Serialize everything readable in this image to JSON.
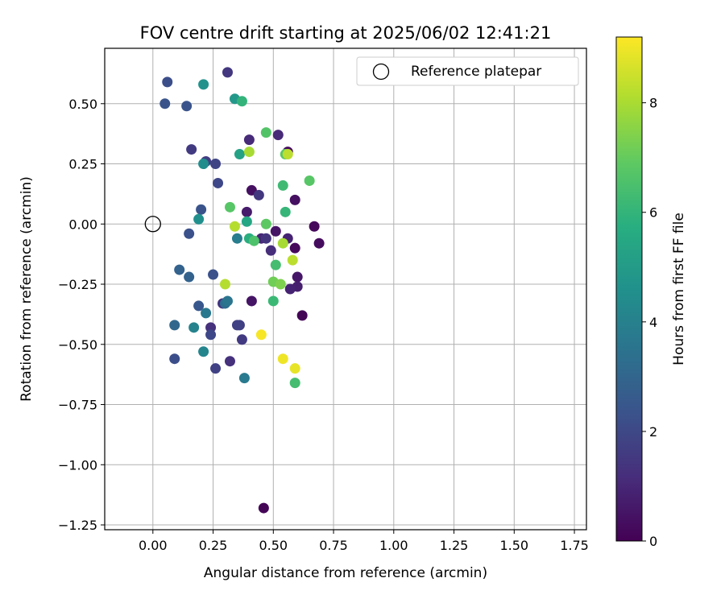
{
  "chart_data": {
    "type": "scatter",
    "title": "FOV centre drift starting at 2025/06/02 12:41:21",
    "xlabel": "Angular distance from reference (arcmin)",
    "ylabel": "Rotation from reference (arcmin)",
    "xlim": [
      -0.2,
      1.8
    ],
    "ylim": [
      -1.27,
      0.73
    ],
    "xticks": [
      0.0,
      0.25,
      0.5,
      0.75,
      1.0,
      1.25,
      1.5,
      1.75
    ],
    "xtick_labels": [
      "0.00",
      "0.25",
      "0.50",
      "0.75",
      "1.00",
      "1.25",
      "1.50",
      "1.75"
    ],
    "yticks": [
      0.5,
      0.25,
      0.0,
      -0.25,
      -0.5,
      -0.75,
      -1.0,
      -1.25
    ],
    "ytick_labels": [
      "0.50",
      "0.25",
      "0.00",
      "−0.25",
      "−0.50",
      "−0.75",
      "−1.00",
      "−1.25"
    ],
    "grid": true,
    "colormap": "viridis",
    "colorbar": {
      "label": "Hours from first FF file",
      "range": [
        0,
        9.2
      ],
      "ticks": [
        0,
        2,
        4,
        6,
        8
      ],
      "tick_labels": [
        "0",
        "2",
        "4",
        "6",
        "8"
      ]
    },
    "legend": {
      "position": "top-right",
      "entries": [
        {
          "label": "Reference platepar",
          "marker": "open-circle"
        }
      ]
    },
    "reference_point": {
      "x": 0.0,
      "y": 0.0
    },
    "points": [
      {
        "x": 0.46,
        "y": -1.18,
        "h": 0.1
      },
      {
        "x": 0.62,
        "y": -0.38,
        "h": 0.1
      },
      {
        "x": 0.67,
        "y": -0.01,
        "h": 0.2
      },
      {
        "x": 0.69,
        "y": -0.08,
        "h": 0.3
      },
      {
        "x": 0.59,
        "y": -0.1,
        "h": 0.2
      },
      {
        "x": 0.56,
        "y": 0.3,
        "h": 0.3
      },
      {
        "x": 0.59,
        "y": 0.1,
        "h": 0.4
      },
      {
        "x": 0.6,
        "y": -0.22,
        "h": 0.6
      },
      {
        "x": 0.6,
        "y": -0.26,
        "h": 0.8
      },
      {
        "x": 0.57,
        "y": -0.27,
        "h": 0.9
      },
      {
        "x": 0.56,
        "y": -0.06,
        "h": 0.9
      },
      {
        "x": 0.51,
        "y": -0.03,
        "h": 0.5
      },
      {
        "x": 0.41,
        "y": 0.14,
        "h": 0.4
      },
      {
        "x": 0.41,
        "y": -0.32,
        "h": 0.5
      },
      {
        "x": 0.39,
        "y": 0.05,
        "h": 0.7
      },
      {
        "x": 0.45,
        "y": -0.06,
        "h": 1.0
      },
      {
        "x": 0.47,
        "y": -0.06,
        "h": 1.4
      },
      {
        "x": 0.49,
        "y": -0.11,
        "h": 1.2
      },
      {
        "x": 0.52,
        "y": 0.37,
        "h": 1.1
      },
      {
        "x": 0.4,
        "y": 0.35,
        "h": 1.1
      },
      {
        "x": 0.44,
        "y": 0.12,
        "h": 1.5
      },
      {
        "x": 0.31,
        "y": 0.63,
        "h": 1.5
      },
      {
        "x": 0.29,
        "y": -0.33,
        "h": 1.4
      },
      {
        "x": 0.32,
        "y": -0.57,
        "h": 1.3
      },
      {
        "x": 0.37,
        "y": -0.48,
        "h": 1.6
      },
      {
        "x": 0.36,
        "y": -0.42,
        "h": 1.7
      },
      {
        "x": 0.35,
        "y": -0.42,
        "h": 1.8
      },
      {
        "x": 0.24,
        "y": -0.43,
        "h": 1.3
      },
      {
        "x": 0.26,
        "y": -0.6,
        "h": 1.8
      },
      {
        "x": 0.24,
        "y": -0.46,
        "h": 2.0
      },
      {
        "x": 0.16,
        "y": 0.31,
        "h": 1.6
      },
      {
        "x": 0.22,
        "y": 0.26,
        "h": 1.7
      },
      {
        "x": 0.26,
        "y": 0.25,
        "h": 1.9
      },
      {
        "x": 0.27,
        "y": 0.17,
        "h": 2.0
      },
      {
        "x": 0.06,
        "y": 0.59,
        "h": 2.2
      },
      {
        "x": 0.05,
        "y": 0.5,
        "h": 2.4
      },
      {
        "x": 0.14,
        "y": 0.49,
        "h": 2.4
      },
      {
        "x": 0.2,
        "y": 0.06,
        "h": 2.4
      },
      {
        "x": 0.15,
        "y": -0.04,
        "h": 2.3
      },
      {
        "x": 0.25,
        "y": -0.21,
        "h": 2.3
      },
      {
        "x": 0.09,
        "y": -0.56,
        "h": 2.2
      },
      {
        "x": 0.11,
        "y": -0.19,
        "h": 2.9
      },
      {
        "x": 0.15,
        "y": -0.22,
        "h": 2.9
      },
      {
        "x": 0.19,
        "y": -0.34,
        "h": 2.5
      },
      {
        "x": 0.09,
        "y": -0.42,
        "h": 3.1
      },
      {
        "x": 0.3,
        "y": -0.33,
        "h": 3.3
      },
      {
        "x": 0.31,
        "y": -0.32,
        "h": 3.6
      },
      {
        "x": 0.22,
        "y": -0.37,
        "h": 3.7
      },
      {
        "x": 0.17,
        "y": -0.43,
        "h": 4.1
      },
      {
        "x": 0.21,
        "y": -0.53,
        "h": 4.2
      },
      {
        "x": 0.38,
        "y": -0.64,
        "h": 3.8
      },
      {
        "x": 0.35,
        "y": -0.06,
        "h": 3.9
      },
      {
        "x": 0.21,
        "y": 0.25,
        "h": 4.5
      },
      {
        "x": 0.19,
        "y": 0.02,
        "h": 4.6
      },
      {
        "x": 0.21,
        "y": 0.58,
        "h": 4.7
      },
      {
        "x": 0.34,
        "y": 0.52,
        "h": 4.9
      },
      {
        "x": 0.36,
        "y": 0.29,
        "h": 5.3
      },
      {
        "x": 0.39,
        "y": 0.01,
        "h": 5.5
      },
      {
        "x": 0.4,
        "y": -0.06,
        "h": 5.8
      },
      {
        "x": 0.37,
        "y": 0.51,
        "h": 6.0
      },
      {
        "x": 0.55,
        "y": 0.05,
        "h": 6.1
      },
      {
        "x": 0.54,
        "y": 0.16,
        "h": 6.3
      },
      {
        "x": 0.5,
        "y": -0.32,
        "h": 6.2
      },
      {
        "x": 0.51,
        "y": -0.17,
        "h": 6.4
      },
      {
        "x": 0.59,
        "y": -0.66,
        "h": 6.4
      },
      {
        "x": 0.42,
        "y": -0.07,
        "h": 6.6
      },
      {
        "x": 0.32,
        "y": 0.07,
        "h": 6.8
      },
      {
        "x": 0.47,
        "y": 0.38,
        "h": 6.7
      },
      {
        "x": 0.65,
        "y": 0.18,
        "h": 6.8
      },
      {
        "x": 0.47,
        "y": 0.0,
        "h": 6.9
      },
      {
        "x": 0.55,
        "y": 0.29,
        "h": 6.8
      },
      {
        "x": 0.5,
        "y": -0.24,
        "h": 7.2
      },
      {
        "x": 0.53,
        "y": -0.25,
        "h": 7.4
      },
      {
        "x": 0.54,
        "y": -0.08,
        "h": 8.0
      },
      {
        "x": 0.4,
        "y": 0.3,
        "h": 8.0
      },
      {
        "x": 0.34,
        "y": -0.01,
        "h": 8.2
      },
      {
        "x": 0.3,
        "y": -0.25,
        "h": 8.2
      },
      {
        "x": 0.58,
        "y": -0.15,
        "h": 8.3
      },
      {
        "x": 0.56,
        "y": 0.29,
        "h": 8.3
      },
      {
        "x": 0.59,
        "y": -0.6,
        "h": 8.9
      },
      {
        "x": 0.54,
        "y": -0.56,
        "h": 9.0
      },
      {
        "x": 0.45,
        "y": -0.46,
        "h": 9.1
      }
    ]
  }
}
